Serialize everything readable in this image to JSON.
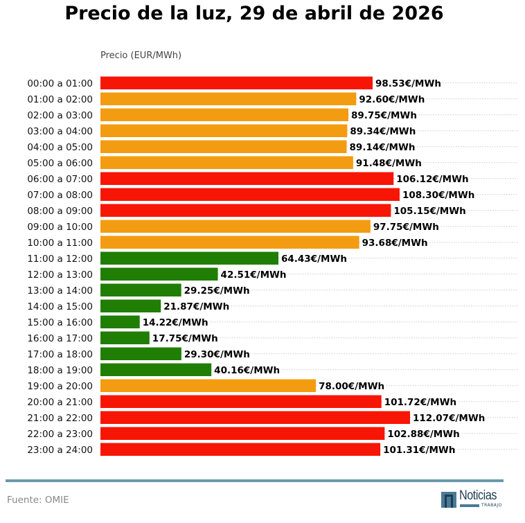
{
  "chart_data": {
    "type": "bar",
    "orientation": "horizontal",
    "title": "Precio de la luz, 29 de abril de 2026",
    "xlabel": "Precio (EUR/MWh)",
    "ylabel": "",
    "grid": true,
    "value_suffix": "€/MWh",
    "categories": [
      "00:00 a 01:00",
      "01:00 a 02:00",
      "02:00 a 03:00",
      "03:00 a 04:00",
      "04:00 a 05:00",
      "05:00 a 06:00",
      "06:00 a 07:00",
      "07:00 a 08:00",
      "08:00 a 09:00",
      "09:00 a 10:00",
      "10:00 a 11:00",
      "11:00 a 12:00",
      "12:00 a 13:00",
      "13:00 a 14:00",
      "14:00 a 15:00",
      "15:00 a 16:00",
      "16:00 a 17:00",
      "17:00 a 18:00",
      "18:00 a 19:00",
      "19:00 a 20:00",
      "20:00 a 21:00",
      "21:00 a 22:00",
      "22:00 a 23:00",
      "23:00 a 24:00"
    ],
    "values": [
      98.53,
      92.6,
      89.75,
      89.34,
      89.14,
      91.48,
      106.12,
      108.3,
      105.15,
      97.75,
      93.68,
      64.43,
      42.51,
      29.25,
      21.87,
      14.22,
      17.75,
      29.3,
      40.16,
      78.0,
      101.72,
      112.07,
      102.88,
      101.31
    ],
    "value_labels": [
      "98.53€/MWh",
      "92.60€/MWh",
      "89.75€/MWh",
      "89.34€/MWh",
      "89.14€/MWh",
      "91.48€/MWh",
      "106.12€/MWh",
      "108.30€/MWh",
      "105.15€/MWh",
      "97.75€/MWh",
      "93.68€/MWh",
      "64.43€/MWh",
      "42.51€/MWh",
      "29.25€/MWh",
      "21.87€/MWh",
      "14.22€/MWh",
      "17.75€/MWh",
      "29.30€/MWh",
      "40.16€/MWh",
      "78.00€/MWh",
      "101.72€/MWh",
      "112.07€/MWh",
      "102.88€/MWh",
      "101.31€/MWh"
    ],
    "levels": [
      "high",
      "mid",
      "mid",
      "mid",
      "mid",
      "mid",
      "high",
      "high",
      "high",
      "mid",
      "mid",
      "low",
      "low",
      "low",
      "low",
      "low",
      "low",
      "low",
      "low",
      "mid",
      "high",
      "high",
      "high",
      "high"
    ],
    "level_colors": {
      "high": "#f71505",
      "mid": "#f39c12",
      "low": "#1f7e03"
    },
    "xlim": [
      0,
      150
    ]
  },
  "footer": {
    "source": "Fuente: OMIE",
    "logo_word": "Noticias",
    "logo_sub": "TRABAJO",
    "rule_color": "#6a98ad"
  }
}
